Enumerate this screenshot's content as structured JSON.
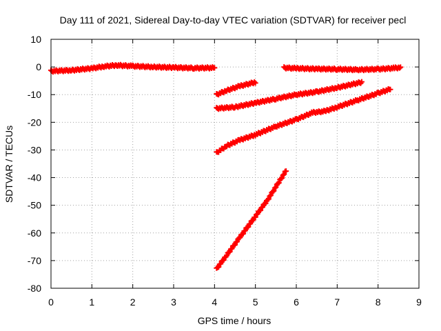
{
  "chart_data": {
    "type": "scatter",
    "title": "Day 111 of 2021, Sidereal Day-to-day VTEC variation (SDTVAR) for receiver pecl",
    "xlabel": "GPS time / hours",
    "ylabel": "SDTVAR / TECUs",
    "xlim": [
      0,
      9
    ],
    "ylim": [
      -80,
      10
    ],
    "xticks": [
      "0",
      "1",
      "2",
      "3",
      "4",
      "5",
      "6",
      "7",
      "8",
      "9"
    ],
    "yticks": [
      "10",
      "0",
      "-10",
      "-20",
      "-30",
      "-40",
      "-50",
      "-60",
      "-70",
      "-80"
    ],
    "grid": true,
    "legend": "none",
    "marker_color": "#ff0000",
    "series": [
      {
        "x": [
          0.0,
          0.5,
          1.0,
          1.3,
          1.6,
          2.0,
          2.5,
          3.0,
          3.5,
          4.0
        ],
        "y": [
          -1.5,
          -1.2,
          -0.5,
          0.2,
          0.6,
          0.3,
          0.0,
          -0.2,
          -0.4,
          -0.3
        ]
      },
      {
        "x": [
          5.7,
          6.0,
          6.5,
          7.0,
          7.5,
          8.0,
          8.4,
          8.55
        ],
        "y": [
          -0.3,
          -0.5,
          -0.7,
          -0.8,
          -1.0,
          -0.8,
          -0.4,
          -0.2
        ]
      },
      {
        "x": [
          4.05,
          4.3,
          4.6,
          5.0
        ],
        "y": [
          -10.0,
          -8.5,
          -7.0,
          -5.5
        ]
      },
      {
        "x": [
          4.05,
          4.5,
          5.0,
          5.5,
          6.0,
          6.5,
          7.0,
          7.6
        ],
        "y": [
          -15.0,
          -14.5,
          -13.0,
          -11.5,
          -10.0,
          -9.0,
          -7.5,
          -5.5
        ]
      },
      {
        "x": [
          4.05,
          4.3,
          4.6,
          5.0,
          5.5,
          6.0,
          6.4,
          6.7,
          7.0,
          7.5,
          8.0,
          8.3
        ],
        "y": [
          -31.0,
          -28.5,
          -26.5,
          -24.5,
          -21.5,
          -19.0,
          -16.5,
          -16.0,
          -14.5,
          -12.0,
          -9.5,
          -8.0
        ]
      },
      {
        "x": [
          4.05,
          4.3,
          4.6,
          5.0,
          5.3,
          5.6,
          5.75
        ],
        "y": [
          -73.0,
          -68.0,
          -62.0,
          -54.0,
          -48.0,
          -41.0,
          -37.5
        ]
      }
    ]
  }
}
